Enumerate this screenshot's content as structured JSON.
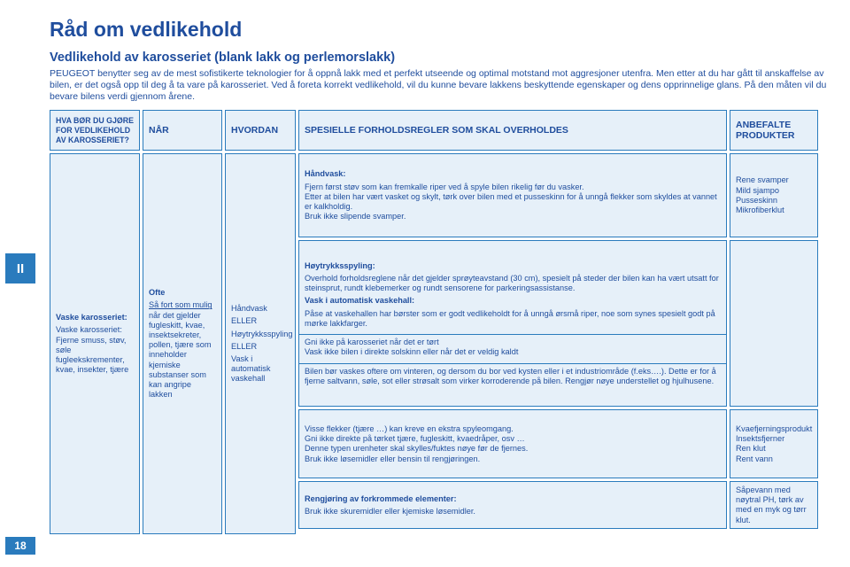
{
  "colors": {
    "accent": "#2a7bbd",
    "text": "#1f4d9d",
    "cell_bg": "#e6f0f9",
    "page_bg": "#ffffff"
  },
  "gutter": {
    "section": "II",
    "page_number": "18"
  },
  "heading": {
    "title": "Råd om vedlikehold",
    "subtitle": "Vedlikehold av karosseriet (blank lakk og perlemorslakk)",
    "intro": "PEUGEOT benytter seg av de mest sofistikerte teknologier for å oppnå lakk med et perfekt utseende og optimal motstand mot aggresjoner utenfra. Men etter at du har gått til anskaffelse av bilen, er det også opp til deg å ta vare på karosseriet. Ved å foreta korrekt vedlikehold, vil du kunne bevare lakkens beskyttende egenskaper og dens opprinnelige glans. På den måten vil du bevare bilens verdi gjennom årene."
  },
  "headers": {
    "c1": "HVA BØR DU GJØRE FOR VEDLIKEHOLD AV KAROSSERIET?",
    "c2": "NÅR",
    "c3": "HVORDAN",
    "c4": "SPESIELLE FORHOLDSREGLER SOM SKAL OVERHOLDES",
    "c5": "ANBEFALTE PRODUKTER"
  },
  "col1": {
    "body_title": "Vaske karosseriet:",
    "body": "Vaske karosseriet: Fjerne smuss, støv, søle fugleekskrementer, kvae, insekter, tjære"
  },
  "col2": {
    "line1": "Ofte",
    "line2": "Så fort som mulig",
    "body": " når det gjelder fugleskitt, kvae, insektsekreter, pollen, tjære som inneholder kjemiske substanser som kan angripe lakken"
  },
  "col3": {
    "l1": "Håndvask",
    "l2": "ELLER",
    "l3": "Høytrykksspyling",
    "l4": "ELLER",
    "l5": "Vask i automatisk vaskehall"
  },
  "col4": {
    "block_a_title": "Håndvask:",
    "block_a_body": "Fjern først støv som kan fremkalle riper ved å spyle bilen rikelig før du vasker.\nEtter at bilen har vært vasket og skylt, tørk over bilen med et pusseskinn for å unngå flekker som skyldes at vannet er kalkholdig.\nBruk ikke slipende svamper.",
    "block_b_title1": "Høytrykksspyling:",
    "block_b_body1": "Overhold forholdsreglene når det gjelder sprøyteavstand (30 cm), spesielt på steder der bilen kan ha vært utsatt for steinsprut, rundt klebemerker og rundt sensorene for parkeringsassistanse.",
    "block_b_title2": "Vask i automatisk vaskehall:",
    "block_b_body2": "Påse at vaskehallen har børster som er godt vedlikeholdt for å unngå ørsmå riper, noe som synes spesielt godt på mørke lakkfarger.",
    "block_b_body3": "Gni ikke på karosseriet når det er tørt\nVask ikke bilen i direkte solskinn eller når det er veldig kaldt",
    "block_b_body4": "Bilen bør vaskes oftere om vinteren, og dersom du bor ved kysten eller i et industriområde (f.eks….). Dette er for å fjerne saltvann, søle, sot eller strøsalt som virker korroderende på bilen.  Rengjør nøye understellet og hjulhusene.",
    "block_c_body": "Visse flekker (tjære …) kan kreve en ekstra spyleomgang.\nGni ikke direkte på tørket tjære, fugleskitt, kvaedråper, osv …\nDenne typen urenheter skal skylles/fuktes nøye før de fjernes.\nBruk ikke løsemidler eller bensin til rengjøringen.",
    "block_d_title": "Rengjøring av forkrommede elementer:",
    "block_d_body": "Bruk ikke skuremidler eller kjemiske løsemidler."
  },
  "col5": {
    "a": "Rene svamper\nMild sjampo\nPusseskinn\nMikrofiberklut",
    "b": "",
    "c": "Kvaefjerningsprodukt\nInsektsfjerner\nRen klut\nRent vann",
    "d": "Såpevann med nøytral PH, tørk av med en myk og tørr klut."
  }
}
